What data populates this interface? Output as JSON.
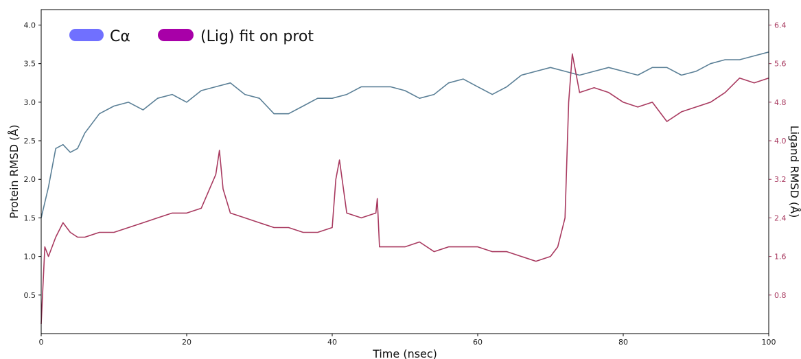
{
  "chart_data": {
    "type": "line",
    "title": "",
    "xlabel": "Time (nsec)",
    "ylabel": "Protein RMSD (Å)",
    "y2label": "Ligand RMSD (Å)",
    "xlim": [
      0,
      100
    ],
    "ylim": [
      0,
      4.2
    ],
    "y2lim": [
      0,
      6.72
    ],
    "x_ticks": [
      "0",
      "20",
      "40",
      "60",
      "80",
      "100"
    ],
    "y_ticks": [
      "0.5",
      "1.0",
      "1.5",
      "2.0",
      "2.5",
      "3.0",
      "3.5",
      "4.0"
    ],
    "y2_ticks": [
      "0.8",
      "1.6",
      "2.4",
      "3.2",
      "4.0",
      "4.8",
      "5.6",
      "6.4"
    ],
    "grid": false,
    "legend_position": "top-left",
    "colors": {
      "protein_line": "#5a7f96",
      "ligand_line": "#a8395f",
      "legend_protein": "#7070ff",
      "legend_ligand": "#a800a8",
      "right_axis": "#a8395f"
    },
    "series": [
      {
        "name": "Cα",
        "axis": "left",
        "x": [
          0,
          1,
          2,
          3,
          4,
          5,
          6,
          8,
          10,
          12,
          14,
          16,
          18,
          20,
          22,
          24,
          26,
          28,
          30,
          32,
          34,
          36,
          38,
          40,
          42,
          44,
          46,
          48,
          50,
          52,
          54,
          56,
          58,
          60,
          62,
          64,
          66,
          68,
          70,
          72,
          74,
          76,
          78,
          80,
          82,
          84,
          86,
          88,
          90,
          92,
          94,
          96,
          98,
          100
        ],
        "y": [
          1.5,
          1.9,
          2.4,
          2.45,
          2.35,
          2.4,
          2.6,
          2.85,
          2.95,
          3.0,
          2.9,
          3.05,
          3.1,
          3.0,
          3.15,
          3.2,
          3.25,
          3.1,
          3.05,
          2.85,
          2.85,
          2.95,
          3.05,
          3.05,
          3.1,
          3.2,
          3.2,
          3.2,
          3.15,
          3.05,
          3.1,
          3.25,
          3.3,
          3.2,
          3.1,
          3.2,
          3.35,
          3.4,
          3.45,
          3.4,
          3.35,
          3.4,
          3.45,
          3.4,
          3.35,
          3.45,
          3.45,
          3.35,
          3.4,
          3.5,
          3.55,
          3.55,
          3.6,
          3.65
        ]
      },
      {
        "name": "(Lig) fit on prot",
        "axis": "right",
        "x": [
          0,
          0.5,
          1,
          2,
          3,
          4,
          5,
          6,
          8,
          10,
          12,
          14,
          16,
          18,
          20,
          22,
          24,
          24.5,
          25,
          26,
          28,
          30,
          32,
          34,
          36,
          38,
          40,
          40.5,
          41,
          42,
          44,
          46,
          46.2,
          46.5,
          48,
          50,
          52,
          54,
          56,
          58,
          60,
          62,
          64,
          66,
          68,
          70,
          71,
          72,
          72.5,
          73,
          74,
          76,
          78,
          80,
          82,
          84,
          86,
          88,
          90,
          92,
          94,
          96,
          98,
          100
        ],
        "y": [
          0.2,
          1.8,
          1.6,
          2.0,
          2.3,
          2.1,
          2.0,
          2.0,
          2.1,
          2.1,
          2.2,
          2.3,
          2.4,
          2.5,
          2.5,
          2.6,
          3.3,
          3.8,
          3.0,
          2.5,
          2.4,
          2.3,
          2.2,
          2.2,
          2.1,
          2.1,
          2.2,
          3.2,
          3.6,
          2.5,
          2.4,
          2.5,
          2.8,
          1.8,
          1.8,
          1.8,
          1.9,
          1.7,
          1.8,
          1.8,
          1.8,
          1.7,
          1.7,
          1.6,
          1.5,
          1.6,
          1.8,
          2.4,
          4.8,
          5.8,
          5.0,
          5.1,
          5.0,
          4.8,
          4.7,
          4.8,
          4.4,
          4.6,
          4.7,
          4.8,
          5.0,
          5.3,
          5.2,
          5.3
        ]
      }
    ]
  }
}
